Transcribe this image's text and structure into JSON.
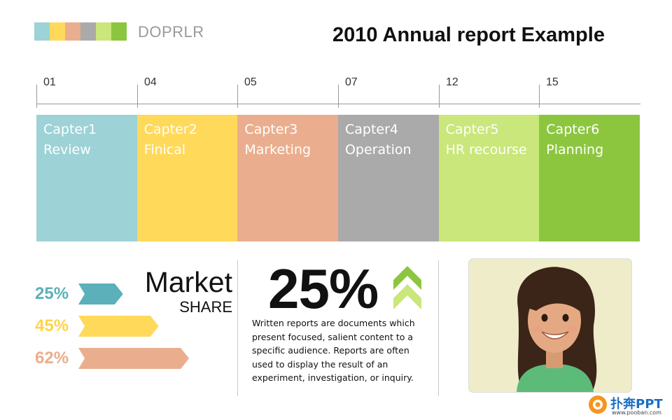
{
  "header": {
    "brand": "DOPRLR",
    "title": "2010 Annual report Example",
    "color_strip": [
      "#9dd2d6",
      "#ffd95a",
      "#eaae8e",
      "#aaaaaa",
      "#c9e77a",
      "#8cc63f"
    ]
  },
  "timeline": {
    "ticks": [
      "01",
      "04",
      "05",
      "07",
      "12",
      "15"
    ]
  },
  "chapters": [
    {
      "num": "Capter1",
      "name": "Review",
      "color": "#9dd2d6"
    },
    {
      "num": "Capter2",
      "name": "Finical",
      "color": "#ffd95a"
    },
    {
      "num": "Capter3",
      "name": "Marketing",
      "color": "#eaae8e"
    },
    {
      "num": "Capter4",
      "name": "Operation",
      "color": "#aaaaaa"
    },
    {
      "num": "Capter5",
      "name": "HR recourse",
      "color": "#c9e77a"
    },
    {
      "num": "Capter6",
      "name": "Planning",
      "color": "#8cc63f"
    }
  ],
  "market_share": {
    "title": "Market",
    "subtitle": "SHARE",
    "bars": [
      {
        "label": "25%",
        "value": 25,
        "color": "#5bb0b9",
        "label_color": "#5bb0b9"
      },
      {
        "label": "45%",
        "value": 45,
        "color": "#ffd95a",
        "label_color": "#ffd44a"
      },
      {
        "label": "62%",
        "value": 62,
        "color": "#eaae8e",
        "label_color": "#eaae8e"
      }
    ]
  },
  "highlight": {
    "percent": "25%",
    "icon": "double-chevron-up-icon",
    "icon_color": "#8cc63f",
    "description": "Written reports are documents which present focused, salient content to a specific audience. Reports are often used to display the result of an experiment, investigation, or inquiry."
  },
  "photo": {
    "icon": "photo-girl"
  },
  "watermark": {
    "text": "扑奔PPT",
    "url": "www.pooban.com"
  }
}
